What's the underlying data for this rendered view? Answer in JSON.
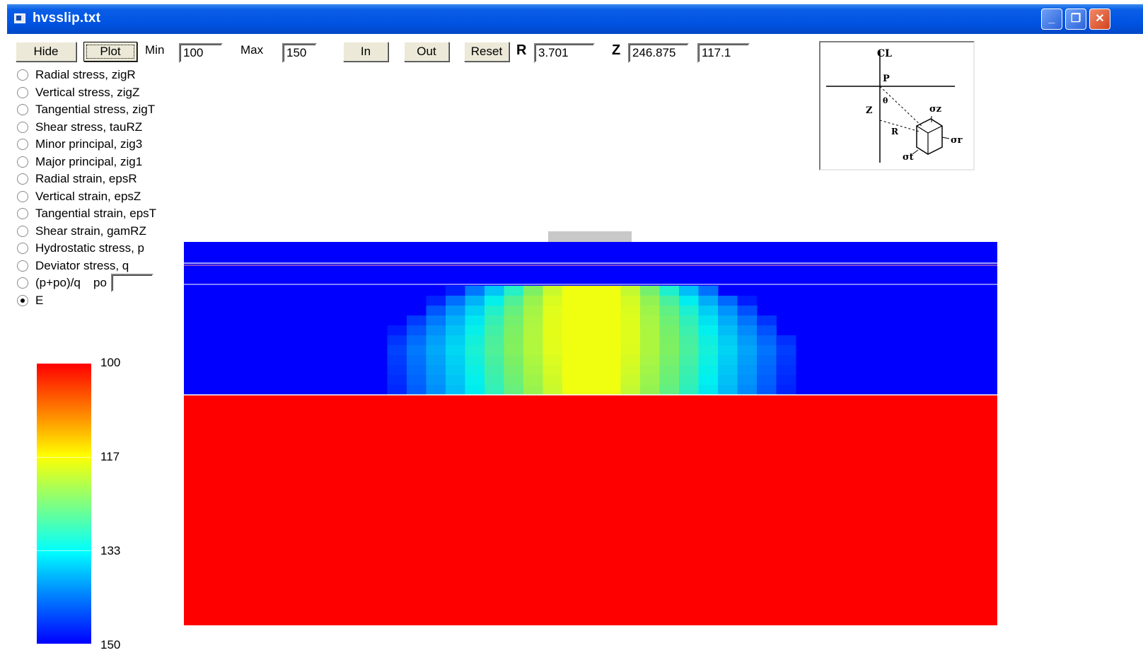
{
  "window": {
    "title": "hvsslip.txt"
  },
  "toolbar": {
    "hide_label": "Hide",
    "plot_label": "Plot",
    "min_label": "Min",
    "min_value": "100",
    "max_label": "Max",
    "max_value": "150",
    "in_label": "In",
    "out_label": "Out",
    "reset_label": "Reset",
    "r_label": "R",
    "r_value": "3.701",
    "z_label": "Z",
    "z_value": "246.875",
    "value_readout": "117.1"
  },
  "options": [
    {
      "label": "Radial stress, zigR",
      "checked": false
    },
    {
      "label": "Vertical stress, zigZ",
      "checked": false
    },
    {
      "label": "Tangential stress, zigT",
      "checked": false
    },
    {
      "label": "Shear stress, tauRZ",
      "checked": false
    },
    {
      "label": "Minor principal, zig3",
      "checked": false
    },
    {
      "label": "Major principal, zig1",
      "checked": false
    },
    {
      "label": "Radial strain, epsR",
      "checked": false
    },
    {
      "label": "Vertical strain, epsZ",
      "checked": false
    },
    {
      "label": "Tangential strain, epsT",
      "checked": false
    },
    {
      "label": "Shear strain, gamRZ",
      "checked": false
    },
    {
      "label": "Hydrostatic stress, p",
      "checked": false
    },
    {
      "label": "Deviator stress, q",
      "checked": false
    },
    {
      "label": "(p+po)/q",
      "checked": false
    },
    {
      "label": "E",
      "checked": true
    }
  ],
  "po_label": "po",
  "po_value": "",
  "legend": {
    "labels": [
      "100",
      "117",
      "133",
      "150"
    ]
  },
  "diagram": {
    "cl_label": "CL",
    "p_label": "P",
    "z_label": "Z",
    "theta_label": "θ",
    "r_label": "R",
    "sigma_z": "σz",
    "sigma_r": "σr",
    "sigma_t": "σt"
  },
  "colors": {
    "min_color": "#ff0000",
    "mid_color": "#ffff00",
    "max_color": "#0000ff",
    "layer_blue": "#0000ff",
    "subgrade_red": "#ff0000"
  }
}
